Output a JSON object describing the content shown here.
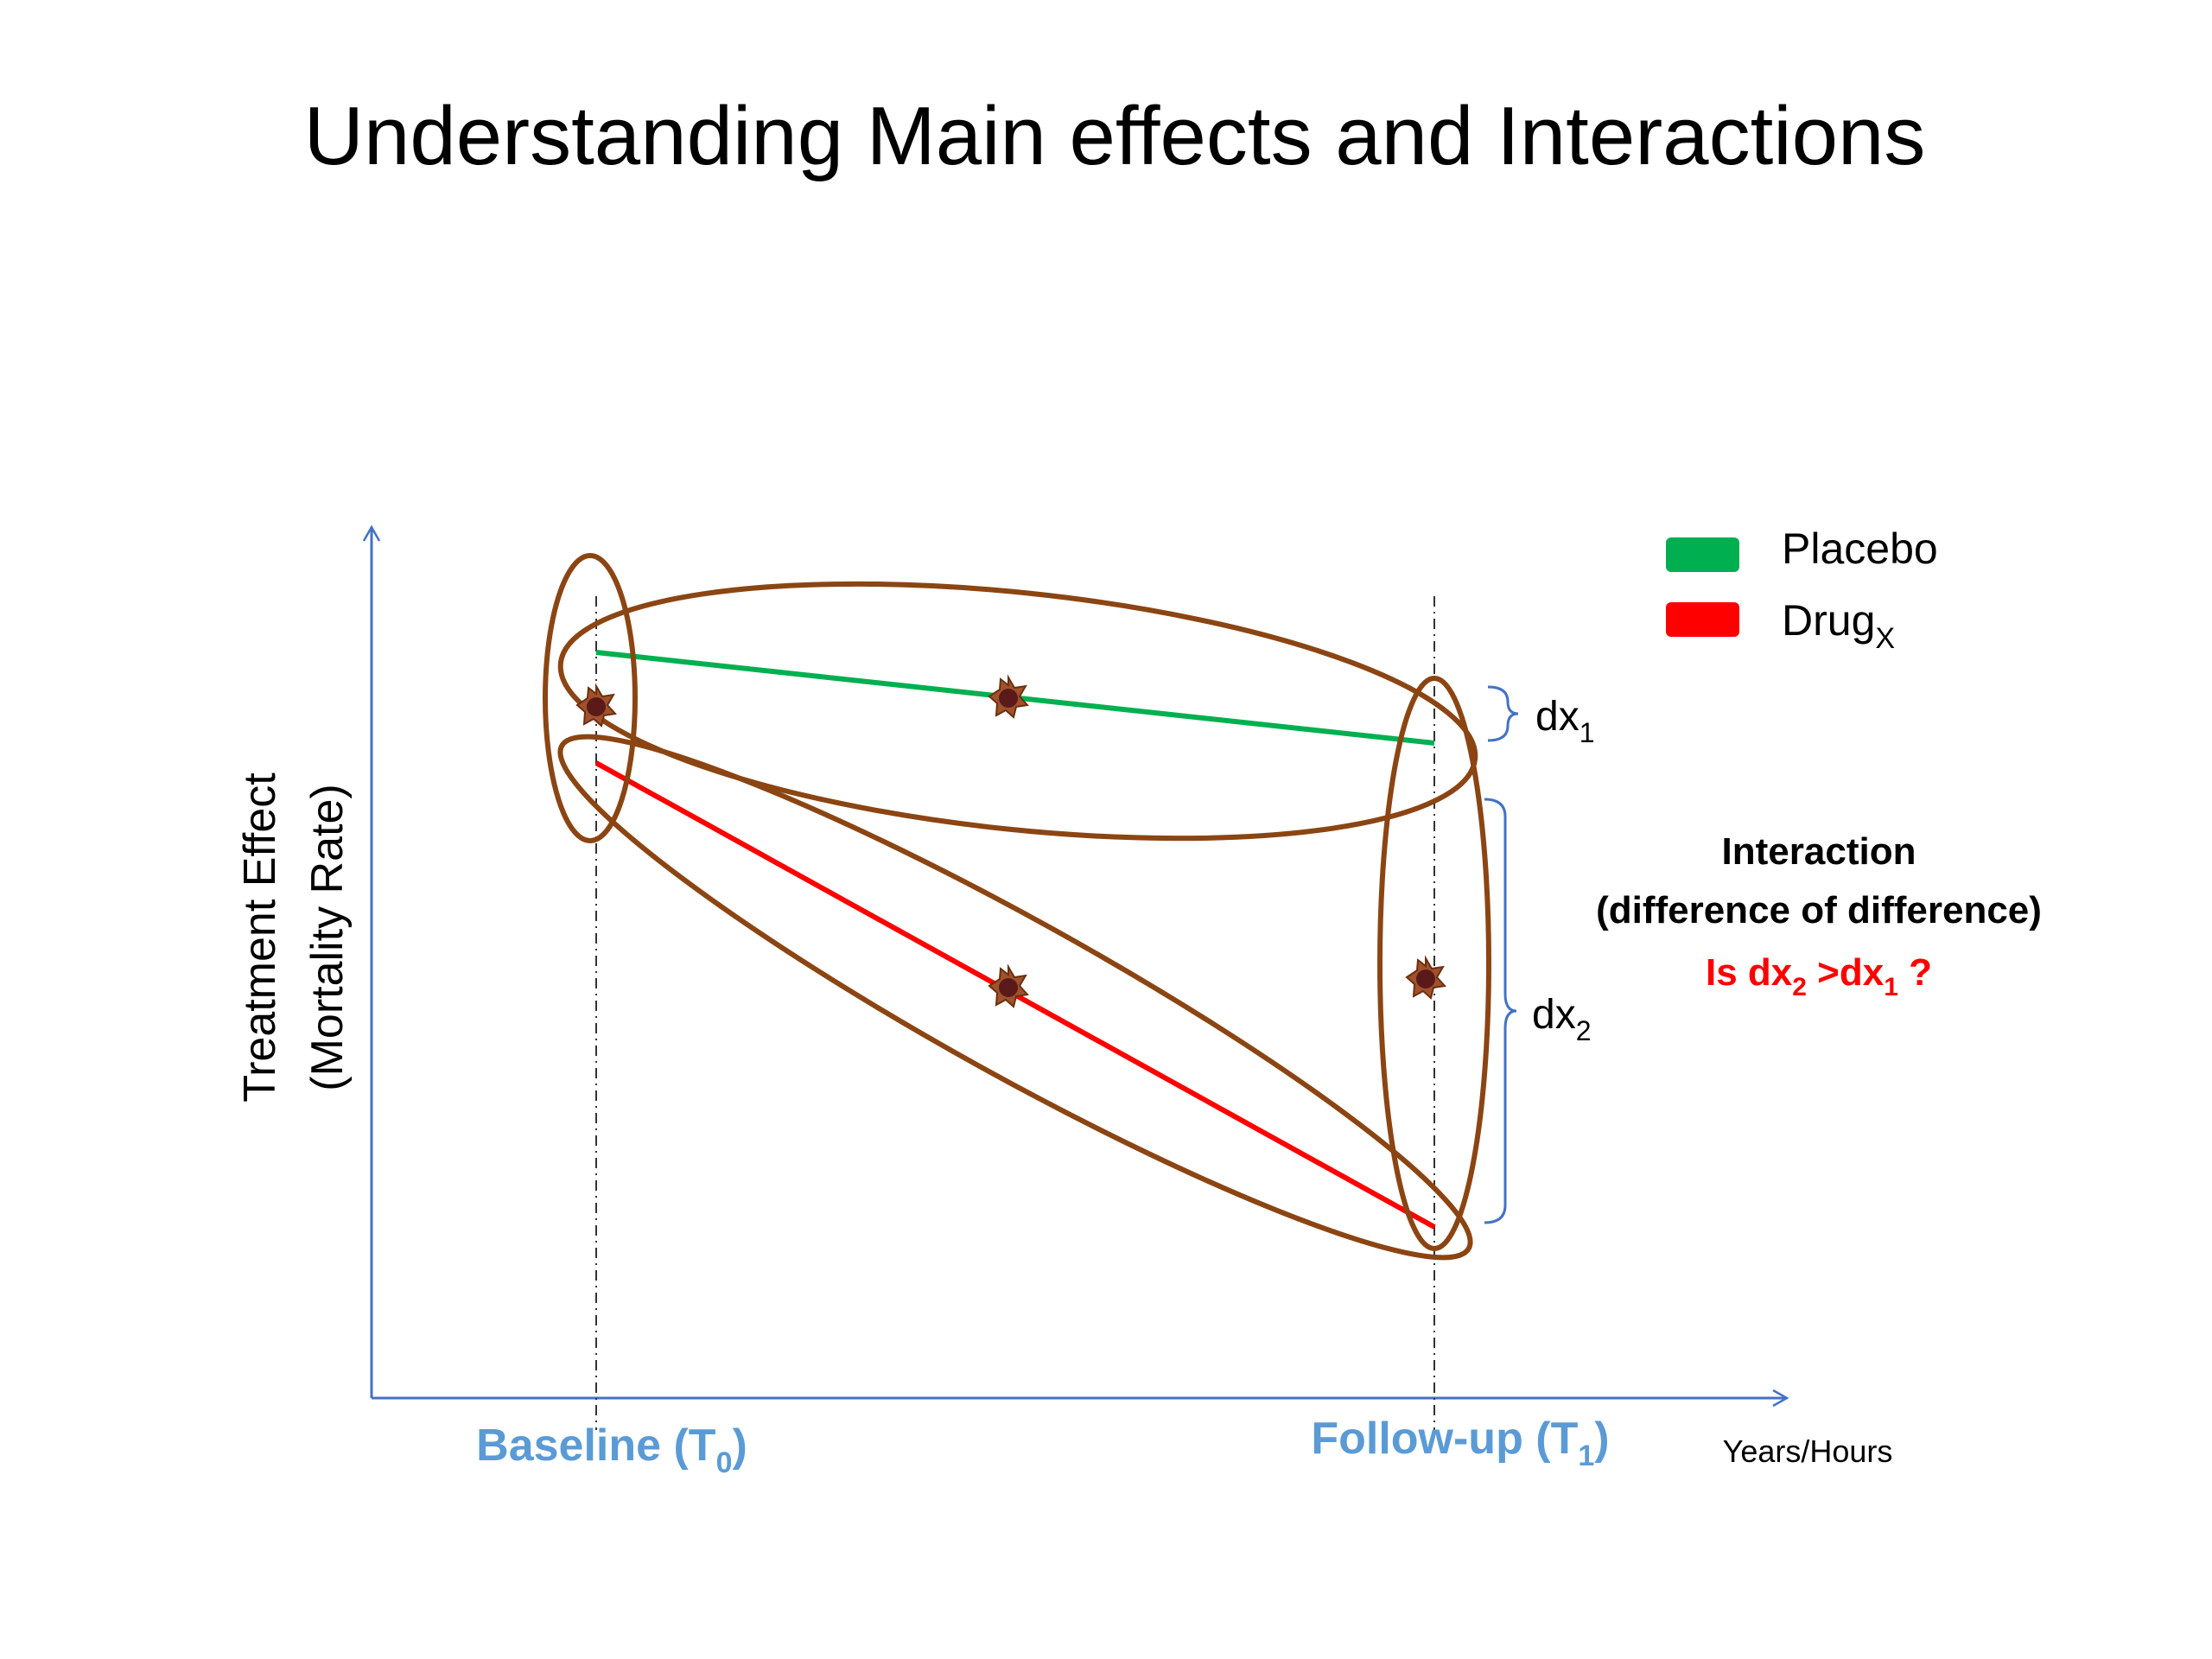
{
  "title": "Understanding Main effects and Interactions",
  "axes": {
    "y_label_line1": "Treatment Effect",
    "y_label_line2": "(Mortality Rate)",
    "x_tick_baseline_main": "Baseline (T",
    "x_tick_baseline_sub": "0",
    "x_tick_baseline_close": ")",
    "x_tick_followup_main": "Follow-up (T",
    "x_tick_followup_sub": "1",
    "x_tick_followup_close": ")",
    "x_unit_label": "Years/Hours"
  },
  "legend": {
    "placebo_label": "Placebo",
    "drug_label_main": "Drug",
    "drug_label_sub": "X"
  },
  "brackets": {
    "dx1_main": "dx",
    "dx1_sub": "1",
    "dx2_main": "dx",
    "dx2_sub": "2"
  },
  "interaction_note": {
    "heading": "Interaction",
    "subheading": "(difference of difference)",
    "question_prefix": "Is dx",
    "question_sub_a": "2",
    "question_mid": " >dx",
    "question_sub_b": "1",
    "question_suffix": " ?"
  },
  "colors": {
    "axis": "#4472c4",
    "placebo": "#00b050",
    "drug": "#ff0000",
    "ellipse": "#8b4513",
    "marker_fill": "#5a1a1a",
    "tick_text": "#5b9bd5",
    "question_text": "#ff0000"
  }
}
